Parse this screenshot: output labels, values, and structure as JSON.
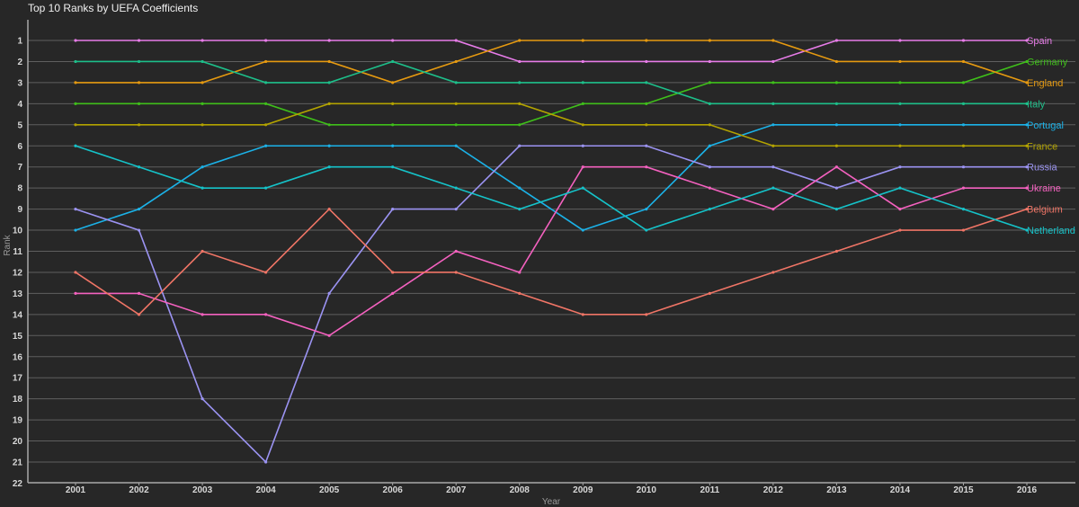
{
  "chart_data": {
    "type": "line",
    "title": "Top 10 Ranks by UEFA Coefficients",
    "xlabel": "Year",
    "ylabel": "Rank",
    "x": [
      2001,
      2002,
      2003,
      2004,
      2005,
      2006,
      2007,
      2008,
      2009,
      2010,
      2011,
      2012,
      2013,
      2014,
      2015,
      2016
    ],
    "ylim": [
      1,
      22
    ],
    "y_inverted": true,
    "y_ticks": [
      1,
      2,
      3,
      4,
      5,
      6,
      7,
      8,
      9,
      10,
      11,
      12,
      13,
      14,
      15,
      16,
      17,
      18,
      19,
      20,
      21,
      22
    ],
    "grid": true,
    "legend_position": "direct labels at right end of lines",
    "series": [
      {
        "name": "Spain",
        "color": "#e77ce8",
        "values": [
          1,
          1,
          1,
          1,
          1,
          1,
          1,
          2,
          2,
          2,
          2,
          2,
          1,
          1,
          1,
          1
        ]
      },
      {
        "name": "Germany",
        "color": "#3fbf1a",
        "values": [
          4,
          4,
          4,
          4,
          5,
          5,
          5,
          5,
          4,
          4,
          3,
          3,
          3,
          3,
          3,
          2
        ]
      },
      {
        "name": "England",
        "color": "#e69a10",
        "values": [
          3,
          3,
          3,
          2,
          2,
          3,
          2,
          1,
          1,
          1,
          1,
          1,
          2,
          2,
          2,
          3
        ]
      },
      {
        "name": "Italy",
        "color": "#1dbf8a",
        "values": [
          2,
          2,
          2,
          3,
          3,
          2,
          3,
          3,
          3,
          3,
          4,
          4,
          4,
          4,
          4,
          4
        ]
      },
      {
        "name": "Portugal",
        "color": "#1bb2e8",
        "values": [
          10,
          9,
          7,
          6,
          6,
          6,
          6,
          8,
          10,
          9,
          6,
          5,
          5,
          5,
          5,
          5
        ]
      },
      {
        "name": "France",
        "color": "#b3a300",
        "values": [
          5,
          5,
          5,
          5,
          4,
          4,
          4,
          4,
          5,
          5,
          5,
          6,
          6,
          6,
          6,
          6
        ]
      },
      {
        "name": "Russia",
        "color": "#9b93f2",
        "values": [
          9,
          10,
          18,
          21,
          13,
          9,
          9,
          6,
          6,
          6,
          7,
          7,
          8,
          7,
          7,
          7
        ]
      },
      {
        "name": "Ukraine",
        "color": "#f461bf",
        "values": [
          13,
          13,
          14,
          14,
          15,
          13,
          11,
          12,
          7,
          7,
          8,
          9,
          7,
          9,
          8,
          8
        ]
      },
      {
        "name": "Belgium",
        "color": "#f07566",
        "values": [
          12,
          14,
          11,
          12,
          9,
          12,
          12,
          13,
          14,
          14,
          13,
          12,
          11,
          10,
          10,
          9
        ]
      },
      {
        "name": "Netherland",
        "color": "#15c3c9",
        "values": [
          6,
          7,
          8,
          8,
          7,
          7,
          8,
          9,
          8,
          10,
          9,
          8,
          9,
          8,
          9,
          10
        ]
      }
    ]
  }
}
